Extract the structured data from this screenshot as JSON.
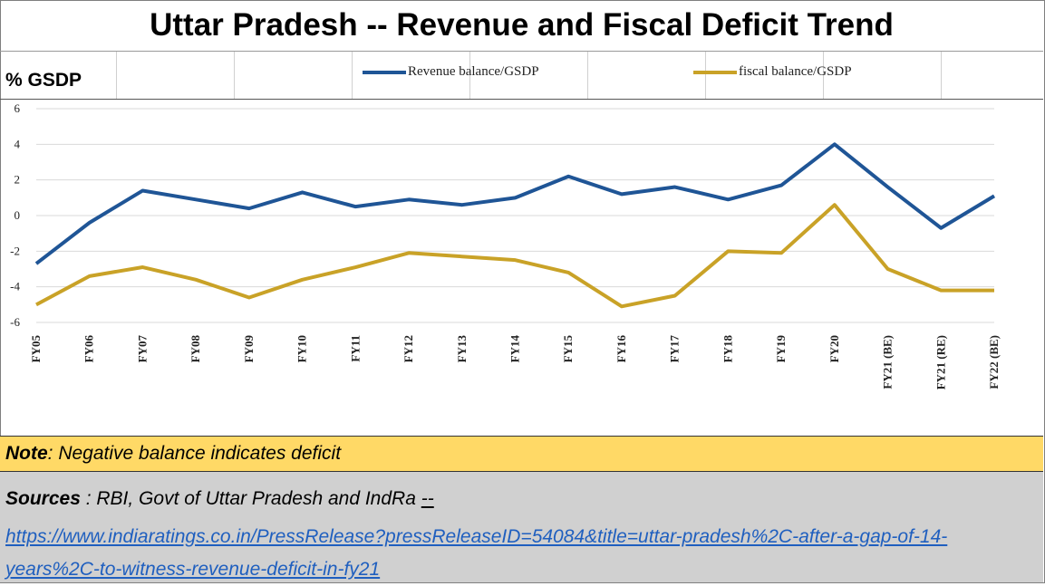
{
  "title": "Uttar Pradesh -- Revenue and Fiscal Deficit Trend",
  "unit_label": "% GSDP",
  "note": {
    "label": "Note",
    "text": " : Negative balance indicates deficit"
  },
  "sources": {
    "label": "Sources",
    "text": " : RBI, Govt of Uttar Pradesh and IndRa ",
    "dash": "--",
    "link": "https://www.indiaratings.co.in/PressRelease?pressReleaseID=54084&title=uttar-pradesh%2C-after-a-gap-of-14-years%2C-to-witness-revenue-deficit-in-fy21"
  },
  "colors": {
    "revenue": "#1f5596",
    "fiscal": "#c9a227"
  },
  "chart_data": {
    "type": "line",
    "categories": [
      "FY05",
      "FY06",
      "FY07",
      "FY08",
      "FY09",
      "FY10",
      "FY11",
      "FY12",
      "FY13",
      "FY14",
      "FY15",
      "FY16",
      "FY17",
      "FY18",
      "FY19",
      "FY20",
      "FY21 (BE)",
      "FY21 (RE)",
      "FY22 (BE)"
    ],
    "series": [
      {
        "name": "Revenue balance/GSDP",
        "values": [
          -2.7,
          -0.4,
          1.4,
          0.9,
          0.4,
          1.3,
          0.5,
          0.9,
          0.6,
          1.0,
          2.2,
          1.2,
          1.6,
          0.9,
          1.7,
          4.0,
          1.6,
          -0.7,
          1.1
        ]
      },
      {
        "name": "fiscal balance/GSDP",
        "values": [
          -5.0,
          -3.4,
          -2.9,
          -3.6,
          -4.6,
          -3.6,
          -2.9,
          -2.1,
          -2.3,
          -2.5,
          -3.2,
          -5.1,
          -4.5,
          -2.0,
          -2.1,
          0.6,
          -3.0,
          -4.2,
          -4.2
        ]
      }
    ],
    "ylim": [
      -6,
      6
    ],
    "yticks": [
      6,
      4,
      2,
      0,
      -2,
      -4,
      -6
    ],
    "grid": true,
    "legend": "top"
  }
}
